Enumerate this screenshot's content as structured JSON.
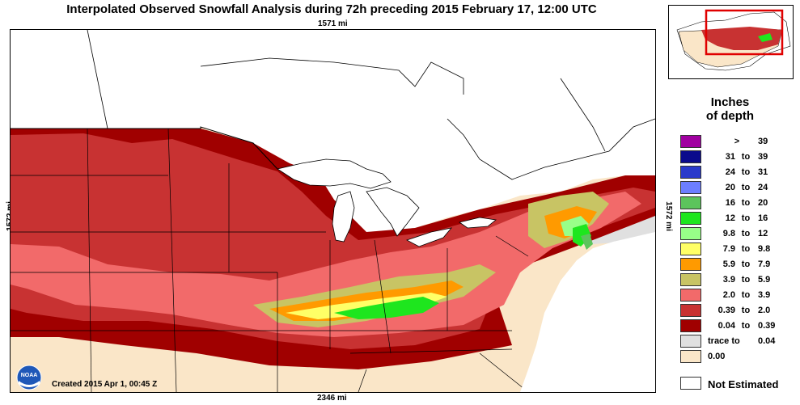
{
  "title": "Interpolated Observed Snowfall Analysis during 72h preceding 2015 February 17, 12:00 UTC",
  "scale": {
    "top": "1571 mi",
    "bottom": "2346 mi",
    "left": "1572 mi",
    "right": "1572 mi"
  },
  "created": "Created 2015 Apr 1, 00:45 Z",
  "logo_text": "NOAA",
  "legend": {
    "title_line1": "Inches",
    "title_line2": "of depth",
    "entries": [
      {
        "type": "gt",
        "value": "39",
        "color": "#a000a0"
      },
      {
        "low": "31",
        "high": "39",
        "color": "#0a0a8c"
      },
      {
        "low": "24",
        "high": "31",
        "color": "#2a3acb"
      },
      {
        "low": "20",
        "high": "24",
        "color": "#6c7eff"
      },
      {
        "low": "16",
        "high": "20",
        "color": "#5cc45c"
      },
      {
        "low": "12",
        "high": "16",
        "color": "#1ee61e"
      },
      {
        "low": "9.8",
        "high": "12",
        "color": "#98ff88"
      },
      {
        "low": "7.9",
        "high": "9.8",
        "color": "#ffff66"
      },
      {
        "low": "5.9",
        "high": "7.9",
        "color": "#ff9a00"
      },
      {
        "low": "3.9",
        "high": "5.9",
        "color": "#c8c464"
      },
      {
        "low": "2.0",
        "high": "3.9",
        "color": "#f26a6a"
      },
      {
        "low": "0.39",
        "high": "2.0",
        "color": "#c83232"
      },
      {
        "low": "0.04",
        "high": "0.39",
        "color": "#a00000"
      },
      {
        "type": "trace",
        "label": "trace to",
        "value": "0.04",
        "color": "#e0e0e0"
      },
      {
        "type": "zero",
        "value": "0.00",
        "color": "#fae6c8"
      }
    ],
    "to_word": "to",
    "gt_symbol": ">",
    "not_estimated": "Not Estimated"
  },
  "colors": {
    "land_no_snow": "#fae6c8",
    "trace": "#e0e0e0",
    "water": "#ffffff",
    "inset_box": "#e00000"
  }
}
